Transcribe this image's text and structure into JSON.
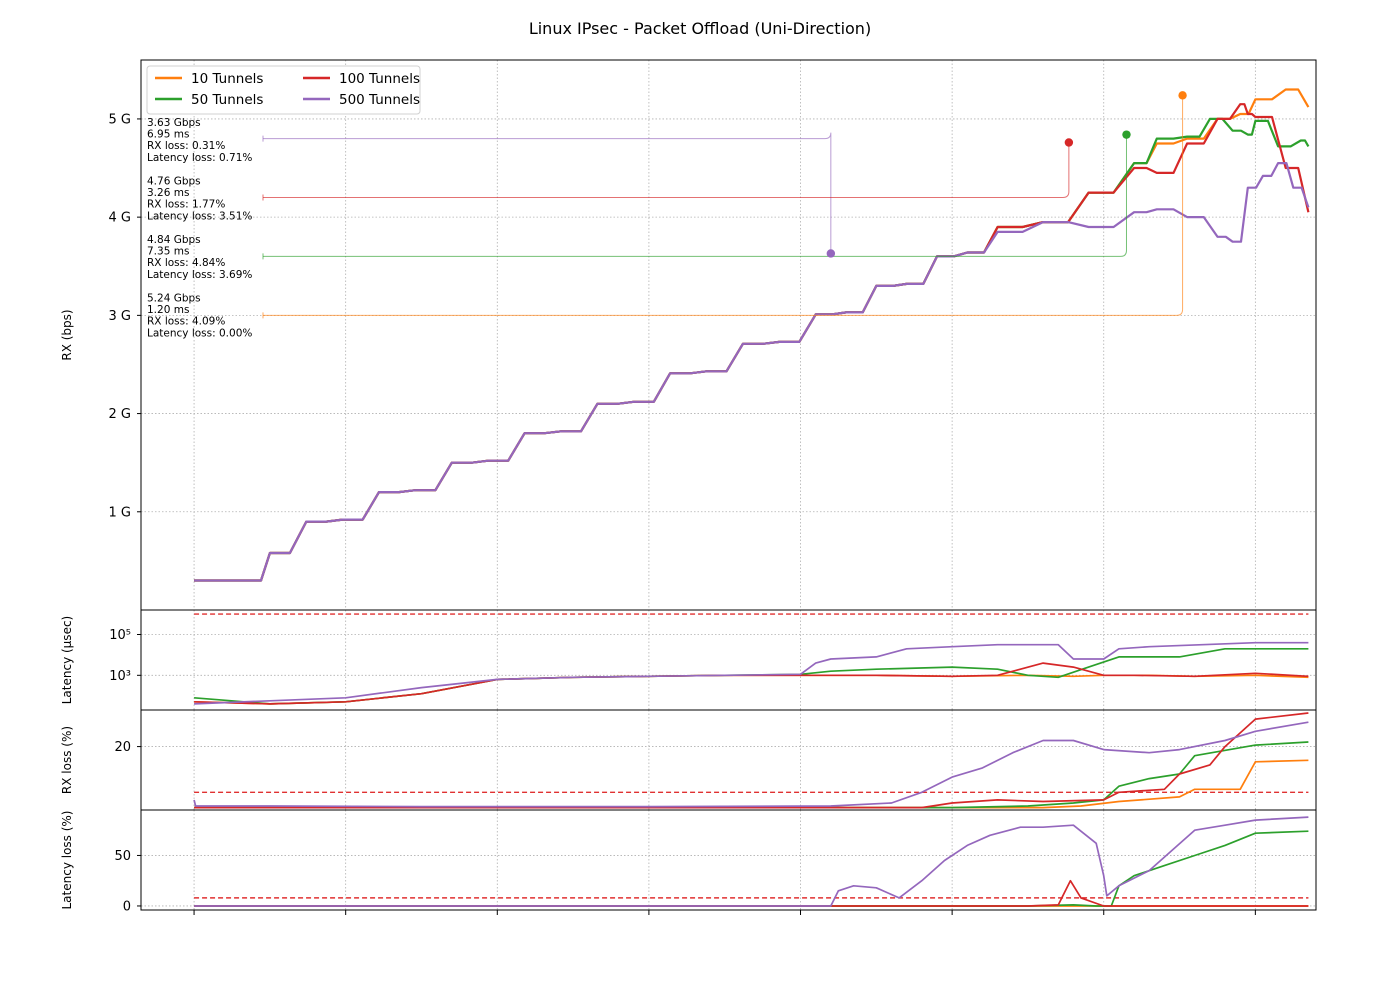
{
  "chart_data": {
    "type": "line",
    "title": "Linux IPsec - Packet Offload (Uni-Direction)",
    "x_range": [
      -0.35,
      7.4
    ],
    "colors": {
      "10 Tunnels": "#ff7f0e",
      "50 Tunnels": "#2ca02c",
      "100 Tunnels": "#d62728",
      "500 Tunnels": "#9467bd",
      "threshold": "#e03131"
    },
    "legend": {
      "placement": "top-left",
      "entries": [
        "10 Tunnels",
        "100 Tunnels",
        "50 Tunnels",
        "500 Tunnels"
      ]
    },
    "panels": [
      {
        "id": "rx",
        "ylabel": "RX (bps)",
        "ylim": [
          0,
          5.6
        ],
        "ticks": [
          {
            "v": 1,
            "label": "1 G"
          },
          {
            "v": 2,
            "label": "2 G"
          },
          {
            "v": 3,
            "label": "3 G"
          },
          {
            "v": 4,
            "label": "4 G"
          },
          {
            "v": 5,
            "label": "5 G"
          }
        ],
        "series": [
          {
            "name": "10 Tunnels",
            "x": [
              0,
              0.37,
              0.5,
              0.74,
              0.98,
              1.22,
              1.46,
              1.7,
              1.94,
              2.18,
              2.42,
              2.66,
              2.9,
              3.14,
              3.38,
              3.62,
              3.86,
              4.1,
              4.3,
              4.5,
              4.7,
              4.9,
              5.1,
              5.3,
              5.6,
              5.9,
              6.2,
              6.35,
              6.55,
              6.75,
              6.9,
              7.0,
              7.2,
              7.35
            ],
            "y": [
              0.3,
              0.3,
              0.58,
              0.9,
              0.92,
              1.2,
              1.22,
              1.5,
              1.52,
              1.8,
              1.82,
              2.1,
              2.12,
              2.41,
              2.43,
              2.71,
              2.73,
              3.01,
              3.03,
              3.3,
              3.32,
              3.6,
              3.64,
              3.9,
              3.95,
              4.25,
              4.55,
              4.75,
              4.8,
              5.0,
              5.05,
              5.2,
              5.3,
              5.12
            ]
          },
          {
            "name": "50 Tunnels",
            "x": [
              0,
              0.37,
              0.5,
              0.74,
              0.98,
              1.22,
              1.46,
              1.7,
              1.94,
              2.18,
              2.42,
              2.66,
              2.9,
              3.14,
              3.38,
              3.62,
              3.86,
              4.1,
              4.3,
              4.5,
              4.7,
              4.9,
              5.1,
              5.3,
              5.6,
              5.9,
              6.2,
              6.35,
              6.55,
              6.7,
              6.85,
              6.95,
              7.0,
              7.15,
              7.3,
              7.35
            ],
            "y": [
              0.3,
              0.3,
              0.58,
              0.9,
              0.92,
              1.2,
              1.22,
              1.5,
              1.52,
              1.8,
              1.82,
              2.1,
              2.12,
              2.41,
              2.43,
              2.71,
              2.73,
              3.01,
              3.03,
              3.3,
              3.32,
              3.6,
              3.64,
              3.9,
              3.95,
              4.25,
              4.55,
              4.8,
              4.82,
              5.0,
              4.88,
              4.84,
              4.98,
              4.72,
              4.78,
              4.72
            ]
          },
          {
            "name": "100 Tunnels",
            "x": [
              0,
              0.37,
              0.5,
              0.74,
              0.98,
              1.22,
              1.46,
              1.7,
              1.94,
              2.18,
              2.42,
              2.66,
              2.9,
              3.14,
              3.38,
              3.62,
              3.86,
              4.1,
              4.3,
              4.5,
              4.7,
              4.9,
              5.1,
              5.3,
              5.6,
              5.9,
              6.2,
              6.35,
              6.55,
              6.75,
              6.9,
              6.95,
              7.0,
              7.2,
              7.35
            ],
            "y": [
              0.3,
              0.3,
              0.58,
              0.9,
              0.92,
              1.2,
              1.22,
              1.5,
              1.52,
              1.8,
              1.82,
              2.1,
              2.12,
              2.41,
              2.43,
              2.71,
              2.73,
              3.01,
              3.03,
              3.3,
              3.32,
              3.6,
              3.64,
              3.9,
              3.95,
              4.25,
              4.5,
              4.45,
              4.75,
              5.0,
              5.15,
              5.05,
              5.02,
              4.5,
              4.05
            ]
          },
          {
            "name": "500 Tunnels",
            "x": [
              0,
              0.37,
              0.5,
              0.74,
              0.98,
              1.22,
              1.46,
              1.7,
              1.94,
              2.18,
              2.42,
              2.66,
              2.9,
              3.14,
              3.38,
              3.62,
              3.86,
              4.1,
              4.3,
              4.5,
              4.7,
              4.9,
              5.1,
              5.3,
              5.6,
              5.9,
              6.2,
              6.35,
              6.55,
              6.75,
              6.85,
              6.95,
              7.05,
              7.15,
              7.25,
              7.35
            ],
            "y": [
              0.3,
              0.3,
              0.58,
              0.9,
              0.92,
              1.2,
              1.22,
              1.5,
              1.52,
              1.8,
              1.82,
              2.1,
              2.12,
              2.41,
              2.43,
              2.71,
              2.73,
              3.01,
              3.03,
              3.3,
              3.32,
              3.6,
              3.64,
              3.85,
              3.95,
              3.9,
              4.05,
              4.08,
              4.0,
              3.8,
              3.75,
              4.3,
              4.42,
              4.55,
              4.3,
              4.1
            ]
          }
        ],
        "markers": [
          {
            "series": "10 Tunnels",
            "x": 6.52,
            "y": 5.24
          },
          {
            "series": "50 Tunnels",
            "x": 6.15,
            "y": 4.84
          },
          {
            "series": "100 Tunnels",
            "x": 5.77,
            "y": 4.76
          },
          {
            "series": "500 Tunnels",
            "x": 4.2,
            "y": 3.63
          }
        ],
        "annotations": [
          {
            "series": "500 Tunnels",
            "level": 4.8,
            "lines": [
              "3.63 Gbps",
              "6.95 ms",
              "RX loss: 0.31%",
              "Latency loss: 0.71%"
            ]
          },
          {
            "series": "100 Tunnels",
            "level": 4.2,
            "lines": [
              "4.76 Gbps",
              "3.26 ms",
              "RX loss: 1.77%",
              "Latency loss: 3.51%"
            ]
          },
          {
            "series": "50 Tunnels",
            "level": 3.6,
            "lines": [
              "4.84 Gbps",
              "7.35 ms",
              "RX loss: 4.84%",
              "Latency loss: 3.69%"
            ]
          },
          {
            "series": "10 Tunnels",
            "level": 3.0,
            "lines": [
              "5.24 Gbps",
              "1.20 ms",
              "RX loss: 4.09%",
              "Latency loss: 0.00%"
            ]
          }
        ]
      },
      {
        "id": "latency",
        "ylabel": "Latency (μsec)",
        "scale": "log10",
        "ylim": [
          1.3,
          6.2
        ],
        "ticks": [
          {
            "v": 3,
            "label": "10³"
          },
          {
            "v": 5,
            "label": "10⁵"
          }
        ],
        "threshold": 6.0,
        "series": [
          {
            "name": "10 Tunnels",
            "x": [
              0,
              0.5,
              1.0,
              1.5,
              2.0,
              2.5,
              3.0,
              3.5,
              4.0,
              4.5,
              5.0,
              5.5,
              5.8,
              6.0,
              6.3,
              6.6,
              7.0,
              7.35
            ],
            "y": [
              1.7,
              1.6,
              1.7,
              2.1,
              2.8,
              2.9,
              2.95,
              3.0,
              3.0,
              3.0,
              2.95,
              3.0,
              2.95,
              3.0,
              3.0,
              2.95,
              3.0,
              2.9
            ]
          },
          {
            "name": "50 Tunnels",
            "x": [
              0,
              0.5,
              1.0,
              1.5,
              2.0,
              2.5,
              3.0,
              3.5,
              4.0,
              4.2,
              4.5,
              5.0,
              5.3,
              5.5,
              5.7,
              5.9,
              6.1,
              6.5,
              6.8,
              7.35
            ],
            "y": [
              1.9,
              1.6,
              1.7,
              2.1,
              2.8,
              2.9,
              2.95,
              3.0,
              3.05,
              3.2,
              3.3,
              3.4,
              3.3,
              3.0,
              2.9,
              3.4,
              3.9,
              3.9,
              4.3,
              4.3
            ]
          },
          {
            "name": "100 Tunnels",
            "x": [
              0,
              0.5,
              1.0,
              1.5,
              2.0,
              2.5,
              3.0,
              3.5,
              4.0,
              4.5,
              5.0,
              5.3,
              5.6,
              5.8,
              6.0,
              6.2,
              6.6,
              7.0,
              7.35
            ],
            "y": [
              1.7,
              1.6,
              1.7,
              2.1,
              2.8,
              2.9,
              2.95,
              3.0,
              3.0,
              3.0,
              2.95,
              3.0,
              3.6,
              3.4,
              3.0,
              3.0,
              2.95,
              3.1,
              2.95
            ]
          },
          {
            "name": "500 Tunnels",
            "x": [
              0,
              0.5,
              1.0,
              1.5,
              2.0,
              2.5,
              3.0,
              3.5,
              4.0,
              4.1,
              4.2,
              4.5,
              4.7,
              5.0,
              5.3,
              5.5,
              5.7,
              5.8,
              6.0,
              6.1,
              6.3,
              7.0,
              7.35
            ],
            "y": [
              1.6,
              1.75,
              1.9,
              2.4,
              2.8,
              2.9,
              2.95,
              3.0,
              3.05,
              3.6,
              3.8,
              3.9,
              4.3,
              4.4,
              4.5,
              4.5,
              4.5,
              3.8,
              3.8,
              4.3,
              4.4,
              4.6,
              4.6
            ]
          }
        ]
      },
      {
        "id": "rxloss",
        "ylabel": "RX loss (%)",
        "ylim": [
          -0.8,
          32
        ],
        "ticks": [
          {
            "v": 20,
            "label": "20"
          }
        ],
        "threshold": 5,
        "series": [
          {
            "name": "10 Tunnels",
            "x": [
              0,
              4.5,
              5.2,
              5.6,
              5.85,
              6.1,
              6.5,
              6.6,
              6.9,
              7.0,
              7.35
            ],
            "y": [
              0,
              0,
              0,
              0,
              0.5,
              2,
              3.5,
              6,
              6,
              15,
              15.5
            ]
          },
          {
            "name": "50 Tunnels",
            "x": [
              0,
              5.0,
              5.5,
              5.8,
              6.0,
              6.1,
              6.3,
              6.5,
              6.6,
              7.0,
              7.35
            ],
            "y": [
              0,
              0,
              0.5,
              1.5,
              2.5,
              7,
              9.5,
              11,
              17,
              20.5,
              21.5
            ]
          },
          {
            "name": "100 Tunnels",
            "x": [
              0,
              4.8,
              5.0,
              5.3,
              5.6,
              6.0,
              6.1,
              6.4,
              6.5,
              6.7,
              6.8,
              7.0,
              7.35
            ],
            "y": [
              0,
              0,
              1.5,
              2.5,
              2,
              2.5,
              5,
              6,
              11,
              14,
              20,
              29,
              31
            ]
          },
          {
            "name": "500 Tunnels",
            "x": [
              0,
              0.01,
              0.5,
              1.5,
              3.0,
              4.2,
              4.6,
              4.8,
              5.0,
              5.2,
              5.4,
              5.6,
              5.8,
              6.0,
              6.3,
              6.5,
              6.8,
              7.0,
              7.35
            ],
            "y": [
              2.5,
              0.5,
              0.5,
              0.3,
              0.3,
              0.5,
              1.5,
              5,
              10,
              13,
              18,
              22,
              22,
              19,
              18,
              19,
              22,
              25,
              28
            ]
          }
        ]
      },
      {
        "id": "latloss",
        "ylabel": "Latency loss (%)",
        "ylim": [
          -4,
          95
        ],
        "ticks": [
          {
            "v": 0,
            "label": "0"
          },
          {
            "v": 50,
            "label": "50"
          }
        ],
        "threshold": 8,
        "series": [
          {
            "name": "10 Tunnels",
            "x": [
              0,
              7.35
            ],
            "y": [
              0,
              0
            ]
          },
          {
            "name": "50 Tunnels",
            "x": [
              0,
              5.0,
              5.5,
              5.8,
              5.95,
              6.05,
              6.1,
              6.2,
              6.4,
              6.6,
              6.8,
              7.0,
              7.35
            ],
            "y": [
              0,
              0,
              0,
              1,
              0,
              0,
              20,
              30,
              40,
              50,
              60,
              72,
              74
            ]
          },
          {
            "name": "100 Tunnels",
            "x": [
              0,
              5.2,
              5.5,
              5.7,
              5.78,
              5.85,
              6.0,
              7.35
            ],
            "y": [
              0,
              0,
              0,
              1,
              25,
              8,
              0,
              0
            ]
          },
          {
            "name": "500 Tunnels",
            "x": [
              0,
              4.2,
              4.25,
              4.35,
              4.5,
              4.65,
              4.8,
              4.95,
              5.1,
              5.25,
              5.45,
              5.6,
              5.8,
              5.95,
              6.0,
              6.02,
              6.1,
              6.3,
              6.45,
              6.6,
              6.8,
              7.0,
              7.35
            ],
            "y": [
              0,
              0,
              15,
              20,
              18,
              8,
              25,
              45,
              60,
              70,
              78,
              78,
              80,
              62,
              30,
              10,
              20,
              35,
              55,
              75,
              80,
              85,
              88
            ]
          }
        ]
      }
    ]
  }
}
